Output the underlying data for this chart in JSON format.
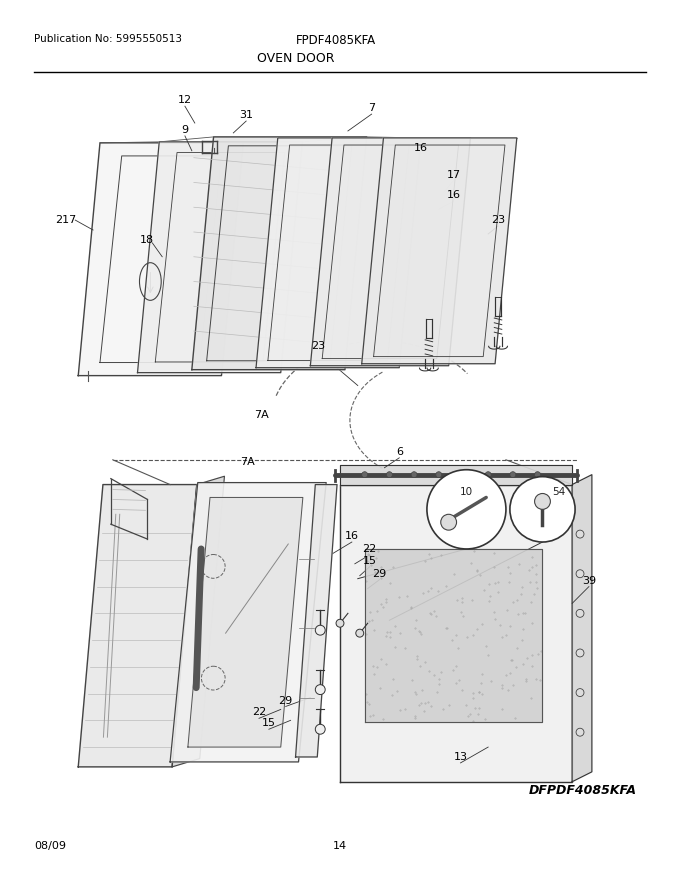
{
  "title_left": "Publication No: 5995550513",
  "title_center": "FPDF4085KFA",
  "subtitle": "OVEN DOOR",
  "footer_left": "08/09",
  "footer_center": "14",
  "footer_right": "DFPDF4085KFA",
  "bg_color": "#ffffff",
  "line_color": "#000000",
  "text_color": "#000000",
  "fig_width": 6.8,
  "fig_height": 8.8,
  "dpi": 100
}
